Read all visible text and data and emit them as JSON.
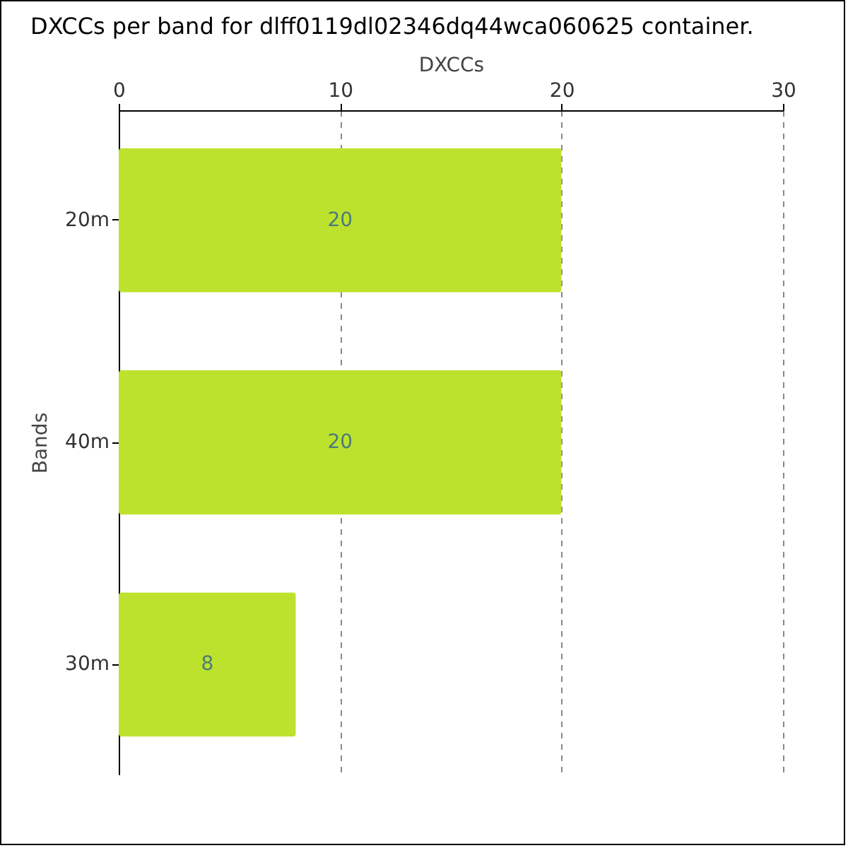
{
  "chart_data": {
    "type": "bar",
    "orientation": "horizontal",
    "title": "DXCCs per band for dlff0119dl02346dq44wca060625 container.",
    "xlabel": "DXCCs",
    "ylabel": "Bands",
    "categories": [
      "20m",
      "40m",
      "30m"
    ],
    "values": [
      20,
      20,
      8
    ],
    "color": "#bde22d",
    "xlim": [
      0,
      30
    ],
    "xticks": [
      0,
      10,
      20,
      30
    ],
    "grid": "x",
    "data_labels": true
  }
}
